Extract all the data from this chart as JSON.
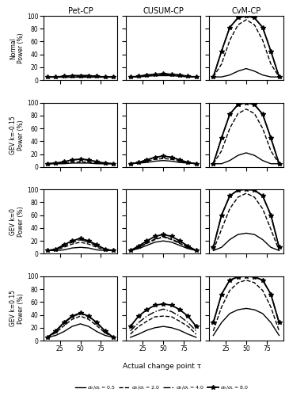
{
  "tau": [
    10,
    20,
    30,
    40,
    50,
    60,
    70,
    80,
    90
  ],
  "col_titles": [
    "Pet-CP",
    "CUSUM-CP",
    "CvM-CP"
  ],
  "row_labels": [
    "Normal\nPower (%)",
    "GEV k=-0.15\nPower (%)",
    "GEV k=0\nPower (%)",
    "GEV k=0.15\nPower (%)"
  ],
  "linestyles": [
    "-",
    "--",
    "-.",
    "-"
  ],
  "markers": [
    null,
    null,
    null,
    "*"
  ],
  "markersize": [
    0,
    0,
    0,
    4
  ],
  "linewidths": [
    1.0,
    1.0,
    1.0,
    1.3
  ],
  "data": {
    "Normal": {
      "Pet-CP": [
        [
          5,
          5,
          5,
          5,
          5,
          5,
          5,
          5,
          5
        ],
        [
          5,
          5,
          5,
          6,
          6,
          6,
          5,
          5,
          5
        ],
        [
          5,
          5,
          6,
          7,
          7,
          7,
          6,
          5,
          5
        ],
        [
          5,
          5,
          6,
          7,
          7,
          7,
          6,
          5,
          5
        ]
      ],
      "CUSUM-CP": [
        [
          5,
          5,
          6,
          7,
          7,
          7,
          6,
          5,
          5
        ],
        [
          5,
          6,
          7,
          8,
          9,
          8,
          7,
          6,
          5
        ],
        [
          5,
          6,
          8,
          9,
          10,
          9,
          8,
          6,
          5
        ],
        [
          5,
          6,
          8,
          9,
          10,
          9,
          8,
          6,
          5
        ]
      ],
      "CvM-CP": [
        [
          5,
          5,
          8,
          14,
          18,
          14,
          8,
          5,
          5
        ],
        [
          5,
          25,
          62,
          86,
          94,
          86,
          62,
          25,
          5
        ],
        [
          5,
          45,
          82,
          97,
          100,
          97,
          82,
          45,
          5
        ],
        [
          5,
          45,
          82,
          97,
          100,
          97,
          82,
          45,
          5
        ]
      ]
    },
    "GEV k=-0.15": {
      "Pet-CP": [
        [
          5,
          5,
          5,
          6,
          6,
          6,
          5,
          5,
          5
        ],
        [
          5,
          5,
          6,
          7,
          8,
          7,
          6,
          5,
          5
        ],
        [
          5,
          6,
          8,
          11,
          12,
          11,
          8,
          6,
          5
        ],
        [
          5,
          6,
          8,
          11,
          12,
          11,
          8,
          6,
          5
        ]
      ],
      "CUSUM-CP": [
        [
          5,
          6,
          7,
          9,
          10,
          9,
          7,
          6,
          5
        ],
        [
          5,
          6,
          9,
          12,
          13,
          12,
          9,
          6,
          5
        ],
        [
          5,
          7,
          11,
          15,
          17,
          15,
          11,
          7,
          5
        ],
        [
          5,
          7,
          11,
          15,
          17,
          15,
          11,
          7,
          5
        ]
      ],
      "CvM-CP": [
        [
          5,
          5,
          10,
          18,
          22,
          18,
          10,
          5,
          5
        ],
        [
          5,
          25,
          60,
          83,
          90,
          83,
          60,
          25,
          5
        ],
        [
          5,
          45,
          82,
          97,
          100,
          97,
          82,
          45,
          5
        ],
        [
          5,
          45,
          82,
          97,
          100,
          97,
          82,
          45,
          5
        ]
      ]
    },
    "GEV k=0": {
      "Pet-CP": [
        [
          5,
          5,
          6,
          9,
          10,
          9,
          6,
          5,
          5
        ],
        [
          5,
          6,
          10,
          15,
          18,
          15,
          10,
          6,
          5
        ],
        [
          5,
          7,
          12,
          18,
          22,
          18,
          12,
          7,
          5
        ],
        [
          5,
          7,
          14,
          20,
          24,
          20,
          14,
          7,
          5
        ]
      ],
      "CUSUM-CP": [
        [
          5,
          8,
          13,
          18,
          20,
          18,
          13,
          8,
          5
        ],
        [
          5,
          10,
          16,
          22,
          26,
          22,
          16,
          10,
          5
        ],
        [
          5,
          10,
          17,
          23,
          27,
          23,
          17,
          10,
          5
        ],
        [
          5,
          12,
          20,
          27,
          30,
          27,
          20,
          12,
          5
        ]
      ],
      "CvM-CP": [
        [
          5,
          10,
          22,
          30,
          32,
          30,
          22,
          10,
          5
        ],
        [
          5,
          38,
          70,
          88,
          94,
          88,
          70,
          38,
          5
        ],
        [
          10,
          60,
          90,
          99,
          100,
          99,
          90,
          60,
          10
        ],
        [
          10,
          60,
          90,
          99,
          100,
          99,
          90,
          60,
          10
        ]
      ]
    },
    "GEV k=0.15": {
      "Pet-CP": [
        [
          5,
          8,
          14,
          22,
          26,
          22,
          14,
          8,
          5
        ],
        [
          5,
          12,
          23,
          33,
          38,
          33,
          23,
          12,
          5
        ],
        [
          5,
          14,
          27,
          37,
          42,
          37,
          27,
          14,
          5
        ],
        [
          5,
          15,
          28,
          38,
          43,
          38,
          28,
          15,
          5
        ]
      ],
      "CUSUM-CP": [
        [
          5,
          10,
          16,
          20,
          22,
          20,
          16,
          10,
          5
        ],
        [
          10,
          22,
          30,
          37,
          38,
          37,
          30,
          22,
          10
        ],
        [
          15,
          28,
          38,
          45,
          49,
          45,
          38,
          28,
          15
        ],
        [
          22,
          38,
          48,
          55,
          57,
          55,
          48,
          38,
          22
        ]
      ],
      "CvM-CP": [
        [
          8,
          28,
          42,
          48,
          50,
          48,
          42,
          28,
          8
        ],
        [
          15,
          52,
          78,
          90,
          94,
          90,
          78,
          52,
          15
        ],
        [
          28,
          72,
          94,
          99,
          100,
          99,
          94,
          72,
          28
        ],
        [
          28,
          72,
          94,
          99,
          100,
          99,
          94,
          72,
          28
        ]
      ]
    }
  },
  "xlabel": "Actual change point τ",
  "ylim": [
    0,
    100
  ],
  "yticks": [
    0,
    20,
    40,
    60,
    80,
    100
  ],
  "xticks": [
    25,
    50,
    75
  ]
}
